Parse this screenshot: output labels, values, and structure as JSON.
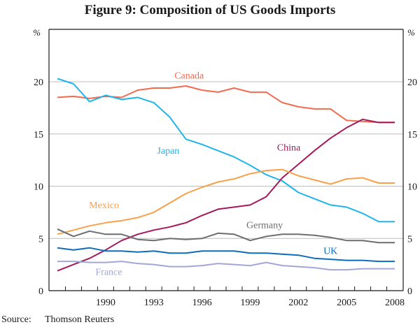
{
  "chart_data": {
    "type": "line",
    "title": "Figure 9: Composition of US Goods Imports",
    "xlabel": "",
    "ylabel": "%",
    "ylabel_right": "%",
    "ylim": [
      0,
      25
    ],
    "yticks": [
      0,
      5,
      10,
      15,
      20
    ],
    "xlim": [
      1987,
      2008
    ],
    "xtick_labels": [
      "1990",
      "1993",
      "1996",
      "1999",
      "2002",
      "2005",
      "2008"
    ],
    "grid": "horizontal",
    "x": [
      1987,
      1988,
      1989,
      1990,
      1991,
      1992,
      1993,
      1994,
      1995,
      1996,
      1997,
      1998,
      1999,
      2000,
      2001,
      2002,
      2003,
      2004,
      2005,
      2006,
      2007,
      2008
    ],
    "series": [
      {
        "name": "Canada",
        "color": "#f26b4f",
        "label": "Canada",
        "values": [
          18.5,
          18.6,
          18.4,
          18.6,
          18.5,
          19.2,
          19.4,
          19.4,
          19.6,
          19.2,
          19.0,
          19.4,
          19.0,
          19.0,
          18.0,
          17.6,
          17.4,
          17.4,
          16.3,
          16.2,
          16.1,
          16.1
        ]
      },
      {
        "name": "Japan",
        "color": "#1fb5ea",
        "label": "Japan",
        "values": [
          20.3,
          19.8,
          18.1,
          18.7,
          18.3,
          18.5,
          18.0,
          16.6,
          14.5,
          14.0,
          13.4,
          12.8,
          12.0,
          11.1,
          10.5,
          9.4,
          8.8,
          8.2,
          8.0,
          7.4,
          6.6,
          6.6
        ]
      },
      {
        "name": "China",
        "color": "#a3195b",
        "label": "China",
        "values": [
          1.9,
          2.5,
          3.1,
          3.9,
          4.8,
          5.4,
          5.8,
          6.1,
          6.5,
          7.2,
          7.8,
          8.0,
          8.2,
          9.0,
          10.8,
          12.1,
          13.4,
          14.6,
          15.6,
          16.4,
          16.1,
          16.1
        ]
      },
      {
        "name": "Mexico",
        "color": "#f9a04a",
        "label": "Mexico",
        "values": [
          5.4,
          5.8,
          6.2,
          6.5,
          6.7,
          7.0,
          7.5,
          8.4,
          9.3,
          9.9,
          10.4,
          10.7,
          11.2,
          11.5,
          11.6,
          11.0,
          10.6,
          10.2,
          10.7,
          10.8,
          10.3,
          10.3
        ]
      },
      {
        "name": "Germany",
        "color": "#6d6e71",
        "label": "Germany",
        "values": [
          5.9,
          5.2,
          5.7,
          5.4,
          5.4,
          4.9,
          4.8,
          5.0,
          4.9,
          5.0,
          5.5,
          5.4,
          4.8,
          5.2,
          5.4,
          5.4,
          5.3,
          5.1,
          4.8,
          4.8,
          4.6,
          4.6
        ]
      },
      {
        "name": "UK",
        "color": "#0f6cbd",
        "label": "UK",
        "values": [
          4.1,
          3.9,
          4.1,
          3.8,
          3.8,
          3.7,
          3.8,
          3.6,
          3.6,
          3.8,
          3.8,
          3.8,
          3.6,
          3.6,
          3.5,
          3.4,
          3.1,
          3.0,
          2.9,
          2.9,
          2.8,
          2.8
        ]
      },
      {
        "name": "France",
        "color": "#a3a6d8",
        "label": "France",
        "values": [
          2.8,
          2.8,
          2.7,
          2.7,
          2.8,
          2.6,
          2.5,
          2.3,
          2.3,
          2.4,
          2.6,
          2.5,
          2.4,
          2.7,
          2.4,
          2.3,
          2.2,
          2.0,
          2.0,
          2.1,
          2.1,
          2.1
        ]
      }
    ],
    "annotations": [
      "Canada",
      "Japan",
      "China",
      "Mexico",
      "Germany",
      "UK",
      "France"
    ]
  },
  "footer": {
    "source_label": "Source:",
    "source_value": "Thomson Reuters"
  }
}
